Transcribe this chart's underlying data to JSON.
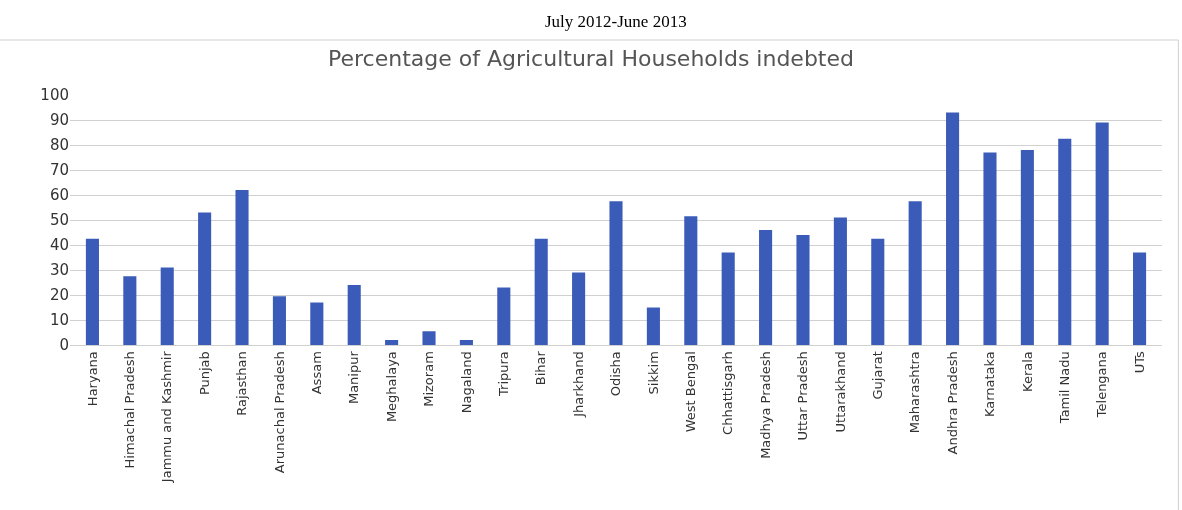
{
  "chart_data": {
    "type": "bar",
    "title": "Percentage of Agricultural Households indebted",
    "annotations": [
      "July 2012-June 2013"
    ],
    "categories": [
      "Haryana",
      "Himachal Pradesh",
      "Jammu and Kashmir",
      "Punjab",
      "Rajasthan",
      "Arunachal Pradesh",
      "Assam",
      "Manipur",
      "Meghalaya",
      "Mizoram",
      "Nagaland",
      "Tripura",
      "Bihar",
      "Jharkhand",
      "Odisha",
      "Sikkim",
      "West Bengal",
      "Chhattisgarh",
      "Madhya Pradesh",
      "Uttar Pradesh",
      "Uttarakhand",
      "Gujarat",
      "Maharashtra",
      "Andhra Pradesh",
      "Karnataka",
      "Kerala",
      "Tamil Nadu",
      "Telengana",
      "UTs"
    ],
    "values": [
      42.5,
      27.5,
      31,
      53,
      62,
      19.5,
      17,
      24,
      2,
      5.5,
      2,
      23,
      42.5,
      29,
      57.5,
      15,
      51.5,
      37,
      46,
      44,
      51,
      42.5,
      57.5,
      93,
      77,
      78,
      82.5,
      89,
      37
    ],
    "color": "#3a5bb8",
    "ylim": [
      0,
      100
    ],
    "yticks": [
      0,
      10,
      20,
      30,
      40,
      50,
      60,
      70,
      80,
      90,
      100
    ],
    "grid": "y"
  }
}
